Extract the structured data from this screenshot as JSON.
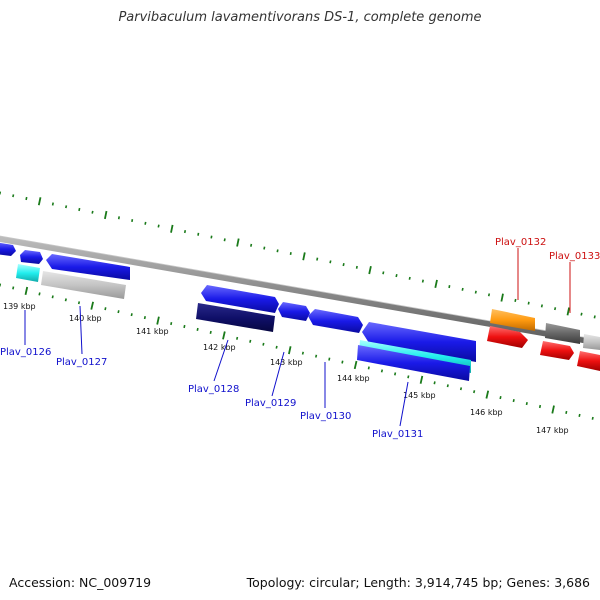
{
  "title": "Parvibaculum lavamentivorans DS-1, complete genome",
  "footer": {
    "accession": "Accession: NC_009719",
    "summary": "Topology: circular; Length: 3,914,745 bp; Genes: 3,686"
  },
  "colors": {
    "forward_gene": "#1010ee",
    "reverse_gene": "#1010ee",
    "highlight_gene": "#ee1010",
    "backbone": "#8a8a8a",
    "tick": "#1a7a1a",
    "label_blue": "#1010cc",
    "label_red": "#cc1010"
  },
  "ticks": [
    {
      "label": "139 kbp"
    },
    {
      "label": "140 kbp"
    },
    {
      "label": "141 kbp"
    },
    {
      "label": "142 kbp"
    },
    {
      "label": "143 kbp"
    },
    {
      "label": "144 kbp"
    },
    {
      "label": "145 kbp"
    },
    {
      "label": "146 kbp"
    },
    {
      "label": "147 kbp"
    }
  ],
  "gene_labels": [
    {
      "name": "Plav_0126"
    },
    {
      "name": "Plav_0127"
    },
    {
      "name": "Plav_0128"
    },
    {
      "name": "Plav_0129"
    },
    {
      "name": "Plav_0130"
    },
    {
      "name": "Plav_0131"
    },
    {
      "name": "Plav_0132"
    },
    {
      "name": "Plav_0133"
    }
  ]
}
